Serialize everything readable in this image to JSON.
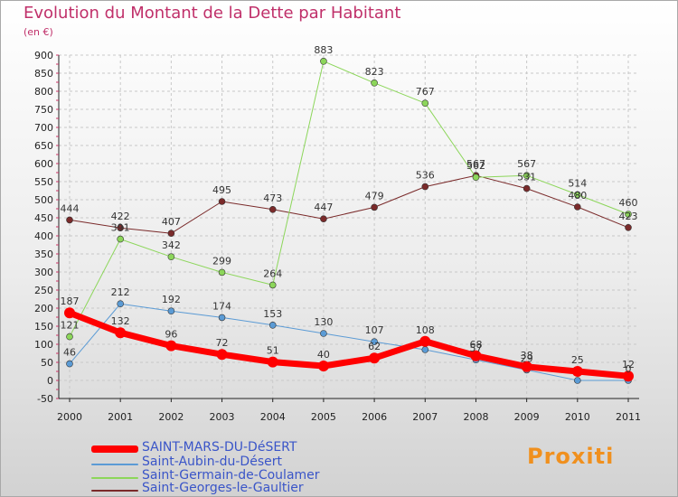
{
  "title": "Evolution du Montant de la Dette par Habitant",
  "unit": "(en €)",
  "brand": "Proxiti",
  "colors": {
    "title": "#c0306a",
    "grid": "#c8c8c8",
    "axis": "#222222"
  },
  "chart_data": {
    "type": "line",
    "x": [
      "2000",
      "2001",
      "2002",
      "2003",
      "2004",
      "2005",
      "2006",
      "2007",
      "2008",
      "2009",
      "2010",
      "2011"
    ],
    "yticks": [
      "-50",
      "0",
      "50",
      "100",
      "150",
      "200",
      "250",
      "300",
      "350",
      "400",
      "450",
      "500",
      "550",
      "600",
      "650",
      "700",
      "750",
      "800",
      "850",
      "900"
    ],
    "ylim": [
      -50,
      900
    ],
    "grid": true,
    "legend_position": "bottom-left",
    "series": [
      {
        "name": "SAINT-MARS-DU-DéSERT",
        "color": "#ff0000",
        "width": 7,
        "values": [
          187,
          132,
          96,
          72,
          51,
          40,
          62,
          108,
          68,
          38,
          25,
          12
        ],
        "labels": [
          "187",
          "132",
          "96",
          "72",
          "51",
          "40",
          "62",
          "108",
          "68",
          "38",
          "25",
          "12"
        ]
      },
      {
        "name": "Saint-Aubin-du-Désert",
        "color": "#5b9bd5",
        "width": 1,
        "values": [
          46,
          212,
          192,
          174,
          153,
          130,
          107,
          85,
          57,
          29,
          0,
          0
        ],
        "labels": [
          "46",
          "212",
          "192",
          "174",
          "153",
          "130",
          "107",
          "",
          "57",
          "29",
          "",
          "0"
        ]
      },
      {
        "name": "Saint-Germain-de-Coulamer",
        "color": "#8cd65a",
        "width": 1,
        "values": [
          121,
          391,
          342,
          299,
          264,
          883,
          823,
          767,
          562,
          567,
          514,
          460
        ],
        "labels": [
          "121",
          "391",
          "342",
          "299",
          "264",
          "883",
          "823",
          "767",
          "562",
          "567",
          "514",
          "460"
        ]
      },
      {
        "name": "Saint-Georges-le-Gaultier",
        "color": "#7a2a2a",
        "width": 1,
        "values": [
          444,
          422,
          407,
          495,
          473,
          447,
          479,
          536,
          567,
          531,
          480,
          423
        ],
        "labels": [
          "444",
          "422",
          "407",
          "495",
          "473",
          "447",
          "479",
          "536",
          "567",
          "531",
          "480",
          "423"
        ]
      }
    ]
  }
}
